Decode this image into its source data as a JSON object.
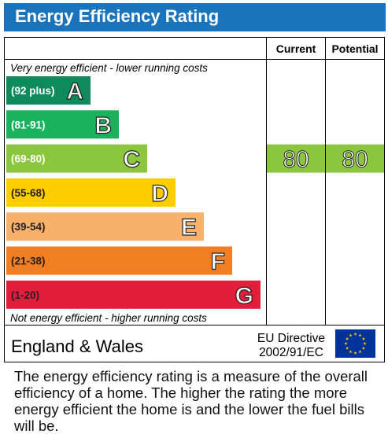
{
  "header": {
    "title": "Energy Efficiency Rating"
  },
  "columns": {
    "current": "Current",
    "potential": "Potential"
  },
  "notes": {
    "top": "Very energy efficient - lower running costs",
    "bottom": "Not energy efficient - higher running costs"
  },
  "footer": {
    "region": "England & Wales",
    "directive_line1": "EU Directive",
    "directive_line2": "2002/91/EC"
  },
  "description": "The energy efficiency rating is a measure of the overall efficiency of a home. The higher the rating the more energy efficient the home is and the lower the fuel bills will be.",
  "chart_data": {
    "type": "bar",
    "title": "Energy Efficiency Rating",
    "bands": [
      {
        "letter": "A",
        "range": "(92 plus)",
        "color": "#0f8a5f"
      },
      {
        "letter": "B",
        "range": "(81-91)",
        "color": "#1bb25e"
      },
      {
        "letter": "C",
        "range": "(69-80)",
        "color": "#8cc63f"
      },
      {
        "letter": "D",
        "range": "(55-68)",
        "color": "#ffcc00"
      },
      {
        "letter": "E",
        "range": "(39-54)",
        "color": "#f8b06a"
      },
      {
        "letter": "F",
        "range": "(21-38)",
        "color": "#f07f24"
      },
      {
        "letter": "G",
        "range": "(1-20)",
        "color": "#e31d3c"
      }
    ],
    "current": {
      "value": 80,
      "band": "C",
      "color": "#8cc63f"
    },
    "potential": {
      "value": 80,
      "band": "C",
      "color": "#8cc63f"
    }
  }
}
